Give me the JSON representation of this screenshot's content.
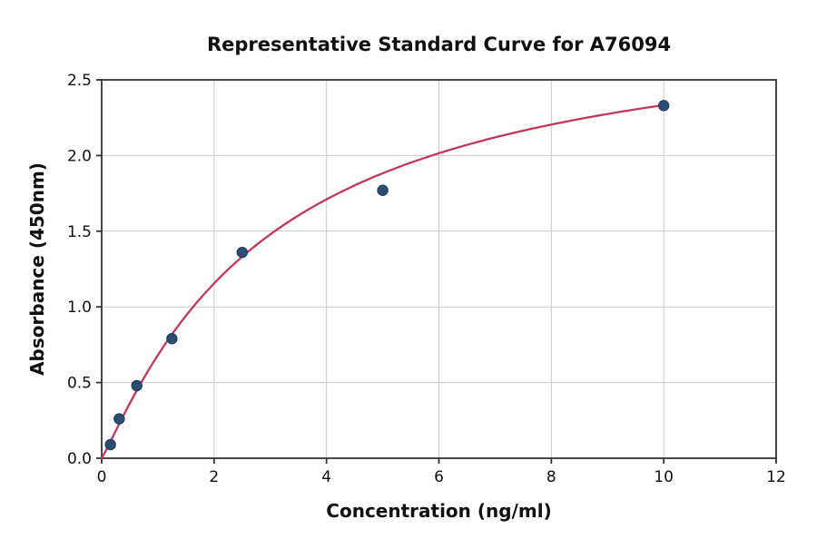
{
  "page": {
    "background": "#ffffff"
  },
  "chart_data": {
    "type": "scatter",
    "title": "Representative Standard Curve for A76094",
    "xlabel": "Concentration (ng/ml)",
    "ylabel": "Absorbance (450nm)",
    "xlim": [
      0,
      12
    ],
    "ylim": [
      0,
      2.5
    ],
    "xticks": [
      0,
      2,
      4,
      6,
      8,
      10,
      12
    ],
    "xtick_labels": [
      "0",
      "2",
      "4",
      "6",
      "8",
      "10",
      "12"
    ],
    "yticks": [
      0,
      0.5,
      1,
      1.5,
      2,
      2.5
    ],
    "ytick_labels": [
      "0.0",
      "0.5",
      "1.0",
      "1.5",
      "2.0",
      "2.5"
    ],
    "grid": true,
    "legend": "none",
    "series": [
      {
        "name": "standard-points",
        "points": [
          {
            "x": 0.156,
            "y": 0.09
          },
          {
            "x": 0.3125,
            "y": 0.26
          },
          {
            "x": 0.625,
            "y": 0.48
          },
          {
            "x": 1.25,
            "y": 0.79
          },
          {
            "x": 2.5,
            "y": 1.36
          },
          {
            "x": 5,
            "y": 1.77
          },
          {
            "x": 10,
            "y": 2.33
          }
        ],
        "marker_color": "#2c4d71",
        "marker_edge_color": "#1d3a57"
      }
    ],
    "fit_curve": {
      "model": "y = d * x^b / (c + x^b)",
      "d": 2.95,
      "b": 1.1,
      "c": 3.33,
      "x_range": [
        0,
        10
      ],
      "color": "#c0395c"
    },
    "style": {
      "grid_color": "#c9c9c9",
      "spine_color": "#333333",
      "text_color": "#111111"
    }
  }
}
